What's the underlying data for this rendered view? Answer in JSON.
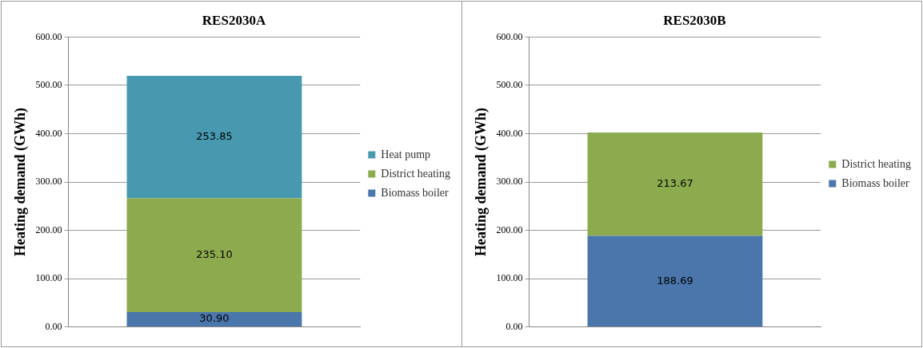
{
  "chart_data": [
    {
      "type": "bar",
      "title": "RES2030A",
      "ylabel": "Heating demand (GWh)",
      "categories": [
        null
      ],
      "stacked": true,
      "legend": "right",
      "grid": "y",
      "ylim": [
        0,
        600
      ],
      "yticks": [
        {
          "value": 0,
          "label": "0.00"
        },
        {
          "value": 100,
          "label": "100.00"
        },
        {
          "value": 200,
          "label": "200.00"
        },
        {
          "value": 300,
          "label": "300.00"
        },
        {
          "value": 400,
          "label": "400.00"
        },
        {
          "value": 500,
          "label": "500.00"
        },
        {
          "value": 600,
          "label": "600.00"
        }
      ],
      "series": [
        {
          "name": "Biomass boiler",
          "color": "#4a76ab",
          "values": [
            30.9
          ],
          "value_labels": [
            "30.90"
          ]
        },
        {
          "name": "District heating",
          "color": "#8cab4e",
          "values": [
            235.1
          ],
          "value_labels": [
            "235.10"
          ]
        },
        {
          "name": "Heat pump",
          "color": "#4899b0",
          "values": [
            253.85
          ],
          "value_labels": [
            "253.85"
          ]
        }
      ]
    },
    {
      "type": "bar",
      "title": "RES2030B",
      "ylabel": "Heating demand (GWh)",
      "categories": [
        null
      ],
      "stacked": true,
      "legend": "right",
      "grid": "y",
      "ylim": [
        0,
        600
      ],
      "yticks": [
        {
          "value": 0,
          "label": "0.00"
        },
        {
          "value": 100,
          "label": "100.00"
        },
        {
          "value": 200,
          "label": "200.00"
        },
        {
          "value": 300,
          "label": "300.00"
        },
        {
          "value": 400,
          "label": "400.00"
        },
        {
          "value": 500,
          "label": "500.00"
        },
        {
          "value": 600,
          "label": "600.00"
        }
      ],
      "series": [
        {
          "name": "Biomass boiler",
          "color": "#4a76ab",
          "values": [
            188.69
          ],
          "value_labels": [
            "188.69"
          ]
        },
        {
          "name": "District heating",
          "color": "#8cab4e",
          "values": [
            213.67
          ],
          "value_labels": [
            "213.67"
          ]
        }
      ]
    }
  ]
}
